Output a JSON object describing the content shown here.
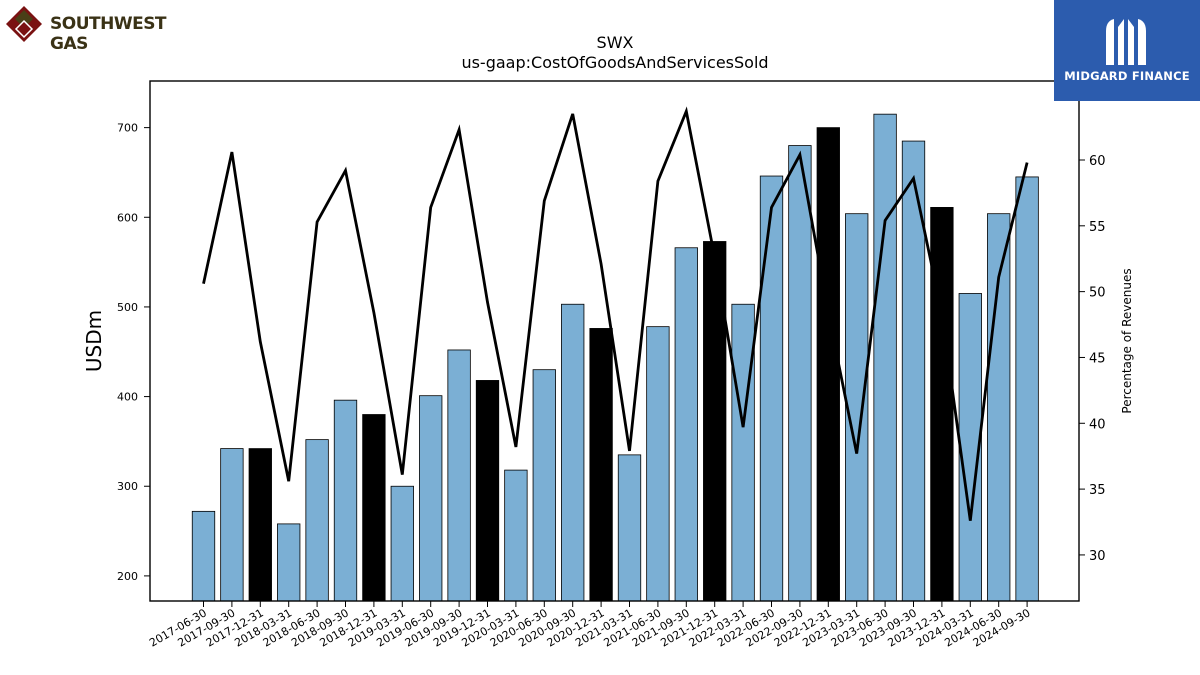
{
  "logos": {
    "left_brand": "SOUTHWEST GAS",
    "right_brand": "MIDGARD FINANCE"
  },
  "chart_data": {
    "type": "bar",
    "title": "SWX",
    "subtitle": "us-gaap:CostOfGoodsAndServicesSold",
    "ylabel": "USDm",
    "y2label": "Percentage of Revenues",
    "ylim": [
      172,
      752
    ],
    "y2lim": [
      26.5,
      66.0
    ],
    "yticks": [
      200,
      300,
      400,
      500,
      600,
      700
    ],
    "y2ticks": [
      30,
      35,
      40,
      45,
      50,
      55,
      60
    ],
    "categories": [
      "2017-06-30",
      "2017-09-30",
      "2017-12-31",
      "2018-03-31",
      "2018-06-30",
      "2018-09-30",
      "2018-12-31",
      "2019-03-31",
      "2019-06-30",
      "2019-09-30",
      "2019-12-31",
      "2020-03-31",
      "2020-06-30",
      "2020-09-30",
      "2020-12-31",
      "2021-03-31",
      "2021-06-30",
      "2021-09-30",
      "2021-12-31",
      "2022-03-31",
      "2022-06-30",
      "2022-09-30",
      "2022-12-31",
      "2023-03-31",
      "2023-06-30",
      "2023-09-30",
      "2023-12-31",
      "2024-03-31",
      "2024-06-30",
      "2024-09-30"
    ],
    "series": [
      {
        "kind": "bar",
        "values": [
          272,
          342,
          342,
          258,
          352,
          396,
          380,
          300,
          401,
          452,
          418,
          318,
          430,
          503,
          476,
          335,
          478,
          566,
          573,
          503,
          646,
          680,
          700,
          604,
          715,
          685,
          611,
          515,
          604,
          645
        ],
        "highlight": [
          false,
          false,
          true,
          false,
          false,
          false,
          true,
          false,
          false,
          false,
          true,
          false,
          false,
          false,
          true,
          false,
          false,
          false,
          true,
          false,
          false,
          false,
          true,
          false,
          false,
          false,
          true,
          false,
          false,
          false
        ],
        "color": "#7bafd4",
        "highlight_color": "#000000"
      },
      {
        "kind": "line",
        "axis": "right",
        "values": [
          50.6,
          60.6,
          46.2,
          35.6,
          55.3,
          59.2,
          48.4,
          36.1,
          56.4,
          62.3,
          49.2,
          38.2,
          56.9,
          63.5,
          52.1,
          37.9,
          58.4,
          63.7,
          52.6,
          39.7,
          56.4,
          60.4,
          48.4,
          37.7,
          55.4,
          58.6,
          48.3,
          32.6,
          51.1,
          59.8
        ],
        "color": "#000000"
      }
    ],
    "grid": false,
    "legend": "none"
  }
}
